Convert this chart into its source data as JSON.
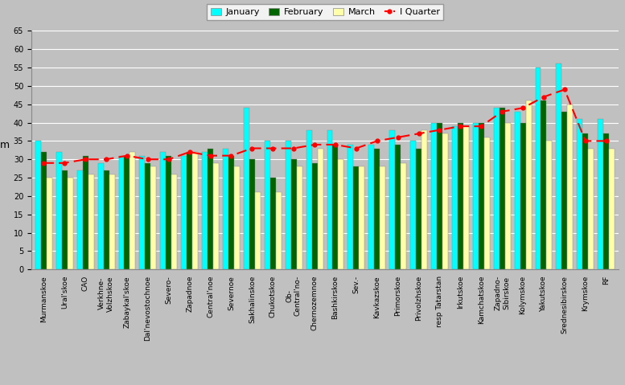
{
  "categories": [
    "Murmanskoe",
    "Ural'skoe",
    "CAO",
    "Verkhne-\nVolzhskoe",
    "Zabaykal'skoe",
    "Dal'nevostochnoe",
    "Severo-",
    "Zapadnoe",
    "Central'noe",
    "Severnoe",
    "Sakhalinskoe",
    "Chukotskoe",
    "Ob-\nCentral'no-",
    "Chernozemnoe",
    "Bashkirskoe",
    "Sev.-",
    "Kavkazskoe",
    "Primorskoe",
    "Privolzhskoe",
    "resp Tatarstan",
    "Irkutskoe",
    "Kamchatskoe",
    "Zapadno-\nSibirskoe",
    "Kolymskoe",
    "Yakutskoe",
    "Srednesibirskoe",
    "Krymskoe",
    "RF"
  ],
  "january": [
    35,
    32,
    27,
    29,
    31,
    31,
    32,
    31,
    32,
    33,
    44,
    35,
    35,
    38,
    38,
    34,
    34,
    38,
    35,
    40,
    39,
    40,
    44,
    43,
    55,
    56,
    41,
    41
  ],
  "february": [
    32,
    27,
    31,
    27,
    31,
    29,
    31,
    32,
    33,
    31,
    30,
    25,
    30,
    29,
    34,
    28,
    33,
    34,
    33,
    40,
    40,
    40,
    44,
    40,
    46,
    43,
    37,
    37
  ],
  "march": [
    25,
    25,
    26,
    26,
    32,
    28,
    26,
    32,
    29,
    28,
    21,
    21,
    28,
    33,
    30,
    28,
    28,
    29,
    38,
    37,
    39,
    36,
    40,
    46,
    35,
    45,
    33,
    33
  ],
  "quarter": [
    29,
    29,
    30,
    30,
    31,
    30,
    30,
    32,
    31,
    31,
    33,
    33,
    33,
    34,
    34,
    33,
    35,
    36,
    37,
    38,
    39,
    39,
    43,
    44,
    47,
    49,
    35,
    35
  ],
  "bar_color_jan": "#00FFFF",
  "bar_color_feb": "#006400",
  "bar_color_mar": "#FFFFAA",
  "line_color": "#FF0000",
  "background_color": "#C0C0C0",
  "plot_bg_color": "#C0C0C0",
  "ylabel": "m",
  "ylim": [
    0,
    65
  ],
  "yticks": [
    0,
    5,
    10,
    15,
    20,
    25,
    30,
    35,
    40,
    45,
    50,
    55,
    60,
    65
  ]
}
